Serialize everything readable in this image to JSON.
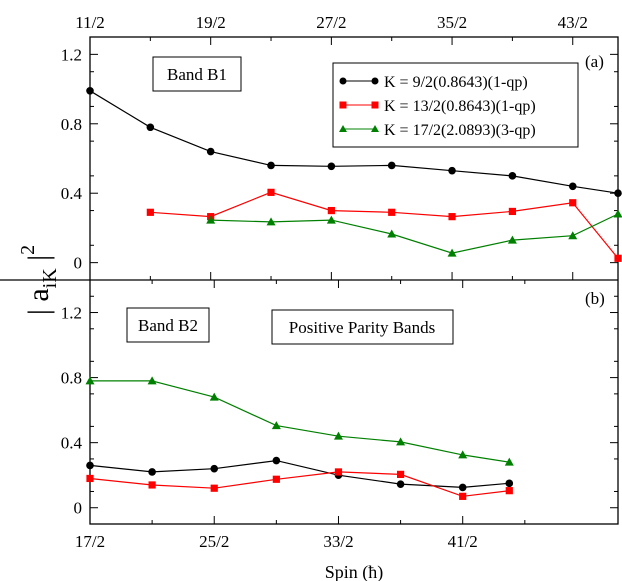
{
  "chart_data": [
    {
      "panel": "(a)",
      "type": "line",
      "box_label": "Band B1",
      "ylabel": "| a_iK |^2",
      "ylim": [
        -0.1,
        1.3
      ],
      "yticks": [
        0,
        0.4,
        0.8,
        1.2
      ],
      "ytick_labels": [
        "0",
        "0.4",
        "0.8",
        "1.2"
      ],
      "x_top_ticks": [
        5.5,
        9.5,
        13.5,
        17.5,
        21.5
      ],
      "x_top_tick_labels": [
        "11/2",
        "19/2",
        "27/2",
        "35/2",
        "43/2"
      ],
      "xlim": [
        5.5,
        23.0
      ],
      "legend_position": "top-right",
      "series": [
        {
          "name": "K = 9/2(0.8643)(1-qp)",
          "color": "#000000",
          "marker": "circle",
          "x": [
            5.5,
            7.5,
            9.5,
            11.5,
            13.5,
            15.5,
            17.5,
            19.5,
            21.5,
            23.0
          ],
          "values": [
            0.99,
            0.78,
            0.64,
            0.56,
            0.555,
            0.56,
            0.53,
            0.5,
            0.44,
            0.4
          ]
        },
        {
          "name": "K = 13/2(0.8643)(1-qp)",
          "color": "#ff0000",
          "marker": "square",
          "x": [
            7.5,
            9.5,
            11.5,
            13.5,
            15.5,
            17.5,
            19.5,
            21.5,
            23.0
          ],
          "values": [
            0.29,
            0.265,
            0.405,
            0.3,
            0.29,
            0.265,
            0.295,
            0.345,
            0.025
          ]
        },
        {
          "name": "K = 17/2(2.0893)(3-qp)",
          "color": "#008000",
          "marker": "triangle",
          "x": [
            9.5,
            11.5,
            13.5,
            15.5,
            17.5,
            19.5,
            21.5,
            23.0
          ],
          "values": [
            0.245,
            0.235,
            0.245,
            0.165,
            0.055,
            0.13,
            0.155,
            0.28
          ]
        }
      ]
    },
    {
      "panel": "(b)",
      "type": "line",
      "box_labels": [
        "Band B2",
        "Positive Parity Bands"
      ],
      "ylim": [
        -0.1,
        1.4
      ],
      "yticks": [
        0,
        0.4,
        0.8,
        1.2
      ],
      "ytick_labels": [
        "0",
        "0.4",
        "0.8",
        "1.2"
      ],
      "x_bottom_ticks": [
        8.5,
        12.5,
        16.5,
        20.5
      ],
      "x_bottom_tick_labels": [
        "17/2",
        "25/2",
        "33/2",
        "41/2"
      ],
      "xlim": [
        8.5,
        25.5
      ],
      "xlabel": "Spin (ħ)",
      "series": [
        {
          "color": "#000000",
          "marker": "circle",
          "x": [
            8.5,
            10.5,
            12.5,
            14.5,
            16.5,
            18.5,
            20.5,
            22.0
          ],
          "values": [
            0.26,
            0.22,
            0.24,
            0.29,
            0.2,
            0.145,
            0.125,
            0.15
          ]
        },
        {
          "color": "#ff0000",
          "marker": "square",
          "x": [
            8.5,
            10.5,
            12.5,
            14.5,
            16.5,
            18.5,
            20.5,
            22.0
          ],
          "values": [
            0.18,
            0.14,
            0.12,
            0.175,
            0.22,
            0.205,
            0.07,
            0.105
          ]
        },
        {
          "color": "#008000",
          "marker": "triangle",
          "x": [
            8.5,
            10.5,
            12.5,
            14.5,
            16.5,
            18.5,
            20.5,
            22.0
          ],
          "values": [
            0.78,
            0.78,
            0.68,
            0.505,
            0.44,
            0.405,
            0.325,
            0.28
          ]
        }
      ]
    }
  ]
}
